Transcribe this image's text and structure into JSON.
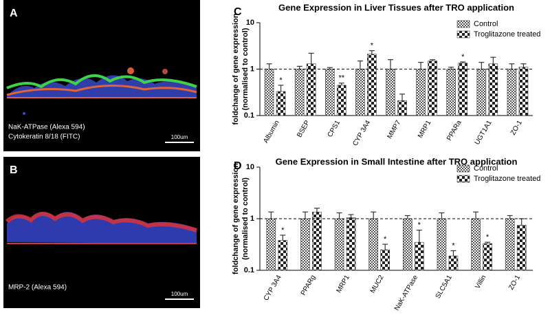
{
  "images": [
    {
      "label": "A",
      "caption": [
        "NaK-ATPase (Alexa 594)",
        "Cytokeratin 8/18 (FITC)"
      ],
      "scale_bar": "100um"
    },
    {
      "label": "B",
      "caption": [
        "MRP-2 (Alexa 594)"
      ],
      "scale_bar": "100um"
    }
  ],
  "chart_data": [
    {
      "type": "bar",
      "panel_label": "C",
      "title": "Gene Expression in Liver Tissues after TRO application",
      "ylabel": [
        "foldchange of gene expression",
        "(normalised to control)"
      ],
      "categories": [
        "Albumin",
        "BSEP",
        "CPS1",
        "CYP 3A4",
        "MMP7",
        "MRP1",
        "PPARa",
        "UGT1A1",
        "ZO-1"
      ],
      "series": [
        {
          "name": "Control",
          "color": "#555555",
          "values": [
            1,
            1,
            1,
            1,
            1,
            1,
            1,
            1,
            1
          ],
          "errors": [
            0.3,
            0.15,
            0.08,
            0.5,
            0.6,
            0.4,
            0.1,
            0.4,
            0.3
          ]
        },
        {
          "name": "Troglitazone treated",
          "color": "#222222",
          "values": [
            0.33,
            1.3,
            0.45,
            2.1,
            0.21,
            1.5,
            1.35,
            1.3,
            1.1
          ],
          "errors": [
            0.12,
            0.9,
            0.05,
            0.4,
            0.08,
            0.1,
            0.08,
            0.5,
            0.2
          ],
          "significance": [
            "*",
            null,
            "**",
            "*",
            null,
            null,
            "*",
            null,
            null
          ]
        }
      ],
      "log_scale": true,
      "ylim": [
        0.1,
        10
      ],
      "yticks": [
        0.1,
        1,
        10
      ],
      "reference_line": 1,
      "legend": "top-right"
    },
    {
      "type": "bar",
      "panel_label": "D",
      "title": "Gene Expression in Small Intestine after TRO application",
      "ylabel": [
        "foldchange of gene expression",
        "(normalised to control)"
      ],
      "categories": [
        "CYP 3A4",
        "PPARg",
        "MRP1",
        "MUC2",
        "NaK-ATPase",
        "SLC5A1",
        "Villin",
        "ZO-1"
      ],
      "series": [
        {
          "name": "Control",
          "color": "#555555",
          "values": [
            1,
            1,
            1,
            1,
            1,
            1,
            1,
            1
          ],
          "errors": [
            0.35,
            0.35,
            0.3,
            0.35,
            0.15,
            0.3,
            0.35,
            0.15
          ]
        },
        {
          "name": "Troglitazone treated",
          "color": "#222222",
          "values": [
            0.38,
            1.35,
            1.05,
            0.25,
            0.35,
            0.19,
            0.33,
            0.75
          ],
          "errors": [
            0.1,
            0.25,
            0.15,
            0.07,
            0.25,
            0.05,
            0.02,
            0.25
          ],
          "significance": [
            "*",
            null,
            null,
            "*",
            "*",
            "*",
            "*",
            null
          ]
        }
      ],
      "log_scale": true,
      "ylim": [
        0.1,
        10
      ],
      "yticks": [
        0.1,
        1,
        10
      ],
      "reference_line": 1,
      "legend": "top-right"
    }
  ]
}
